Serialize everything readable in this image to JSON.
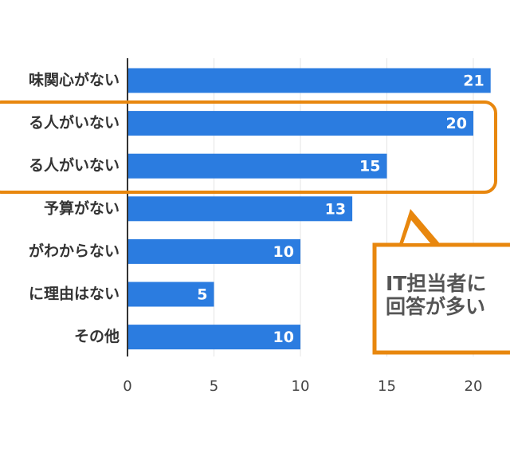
{
  "chart_data": {
    "type": "bar",
    "orientation": "horizontal",
    "categories": [
      "味関心がない",
      "る人がいない",
      "る人がいない",
      "予算がない",
      "がわからない",
      "に理由はない",
      "その他"
    ],
    "values": [
      21,
      20,
      15,
      13,
      10,
      5,
      10
    ],
    "color": "#2b7ce0",
    "xlim": [
      0,
      22
    ],
    "xticks": [
      0,
      5,
      10,
      15,
      20
    ],
    "grid": true,
    "annotation": [
      "IT担当者に",
      "回答が多い"
    ]
  }
}
